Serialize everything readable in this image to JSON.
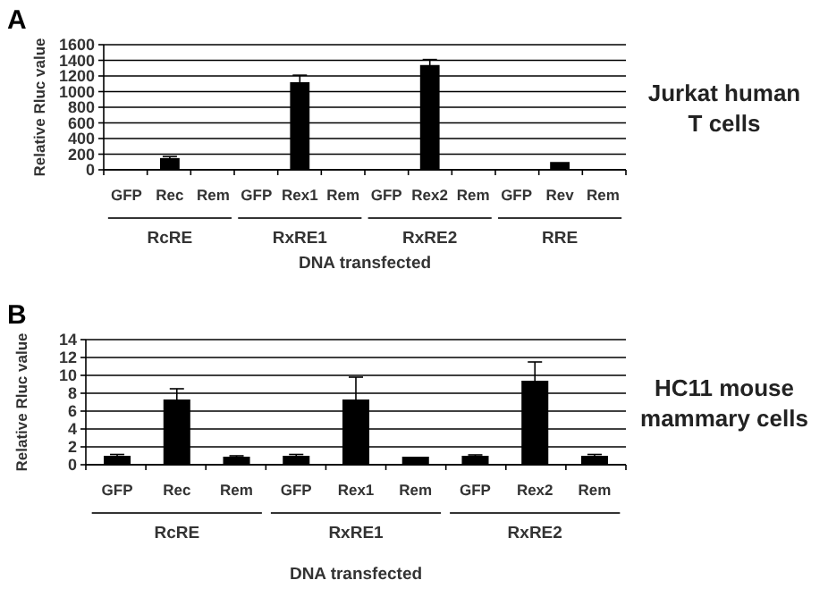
{
  "chart_data": [
    {
      "type": "bar",
      "title": "A",
      "xlabel": "DNA transfected",
      "ylabel": "Relative Rluc value",
      "categories": [
        "GFP",
        "Rec",
        "Rem",
        "GFP",
        "Rex1",
        "Rem",
        "GFP",
        "Rex2",
        "Rem",
        "GFP",
        "Rev",
        "Rem"
      ],
      "values": [
        0,
        150,
        0,
        0,
        1120,
        0,
        0,
        1340,
        0,
        0,
        100,
        0
      ],
      "errors": [
        null,
        20,
        null,
        null,
        90,
        null,
        null,
        70,
        null,
        null,
        null,
        null
      ],
      "color": "#000000",
      "ylim": [
        0,
        1600
      ],
      "yticks": [
        0,
        200,
        400,
        600,
        800,
        1000,
        1200,
        1400,
        1600
      ],
      "grid": "y",
      "annotations": [
        "RcRE",
        "RxRE1",
        "RxRE2",
        "RRE",
        "Jurkat human T cells"
      ]
    },
    {
      "type": "bar",
      "title": "B",
      "xlabel": "DNA transfected",
      "ylabel": "Relative Rluc value",
      "categories": [
        "GFP",
        "Rec",
        "Rem",
        "GFP",
        "Rex1",
        "Rem",
        "GFP",
        "Rex2",
        "Rem"
      ],
      "values": [
        1.0,
        7.3,
        0.9,
        1.0,
        7.3,
        0.9,
        1.0,
        9.4,
        1.0
      ],
      "errors": [
        0.15,
        1.2,
        0.1,
        0.15,
        2.5,
        null,
        0.1,
        2.1,
        0.15
      ],
      "color": "#000000",
      "ylim": [
        0,
        14
      ],
      "yticks": [
        0,
        2,
        4,
        6,
        8,
        10,
        12,
        14
      ],
      "grid": "y",
      "annotations": [
        "RcRE",
        "RxRE1",
        "RxRE2",
        "HC11 mouse mammary cells"
      ]
    }
  ]
}
